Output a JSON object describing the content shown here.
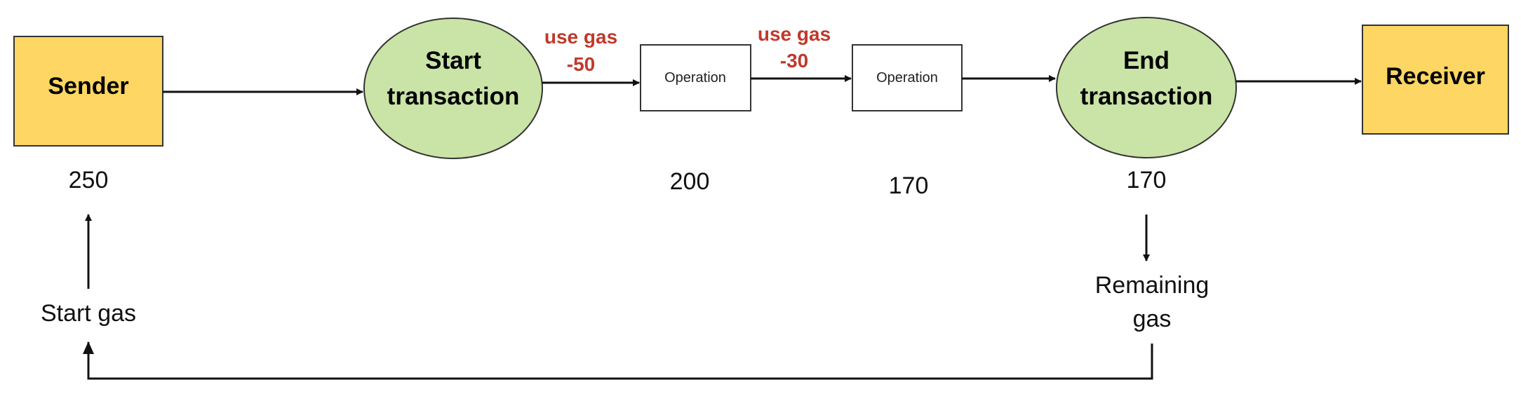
{
  "colors": {
    "box_fill": "#fdd663",
    "box_stroke": "#333333",
    "circle_fill": "#c9e4a6",
    "circle_stroke": "#333333",
    "gas_text": "#c0392b"
  },
  "nodes": {
    "sender": "Sender",
    "start_transaction": [
      "Start",
      "transaction"
    ],
    "operation_1": "Operation",
    "operation_2": "Operation",
    "end_transaction": [
      "End",
      "transaction"
    ],
    "receiver": "Receiver"
  },
  "gas_use": [
    {
      "label": "use gas",
      "value": "-50"
    },
    {
      "label": "use gas",
      "value": "-30"
    }
  ],
  "gas_levels": {
    "sender": "250",
    "operation_1": "200",
    "operation_2": "170",
    "end_transaction": "170"
  },
  "labels": {
    "start_gas": "Start gas",
    "remaining_gas": [
      "Remaining",
      "gas"
    ]
  }
}
